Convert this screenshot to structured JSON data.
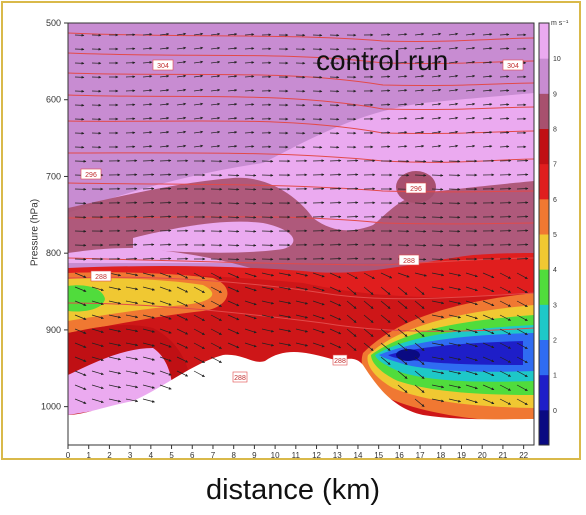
{
  "chart_data": {
    "type": "heatmap",
    "title": "control run",
    "xlabel": "distance (km)",
    "ylabel": "Pressure (hPa)",
    "xlim": [
      0,
      22.5
    ],
    "ylim": [
      500,
      1050
    ],
    "x_ticks": [
      0,
      1,
      2,
      3,
      4,
      5,
      6,
      7,
      8,
      9,
      10,
      11,
      12,
      13,
      14,
      15,
      16,
      17,
      18,
      19,
      20,
      21,
      22
    ],
    "y_ticks": [
      500,
      600,
      700,
      800,
      900,
      1000
    ],
    "colorbar": {
      "unit": "m s⁻¹",
      "ticks": [
        0,
        1,
        2,
        3,
        4,
        5,
        6,
        7,
        8,
        9,
        10
      ],
      "colors": [
        "#0a0a82",
        "#1e1ec8",
        "#2f6cf2",
        "#1ec8c8",
        "#50dc3c",
        "#f0c832",
        "#f07832",
        "#e01e1e",
        "#c01014",
        "#a8506e",
        "#c88cd2",
        "#ebaaf0"
      ]
    },
    "isentrope_labels": [
      "304",
      "304",
      "296",
      "296",
      "288",
      "288",
      "288",
      "288"
    ],
    "regions_description_levels": {
      "upper_background": 9.5,
      "mid_band": 10.5,
      "lower_jet": 7.5,
      "left_core": 4.5,
      "right_core": 1.5
    }
  }
}
